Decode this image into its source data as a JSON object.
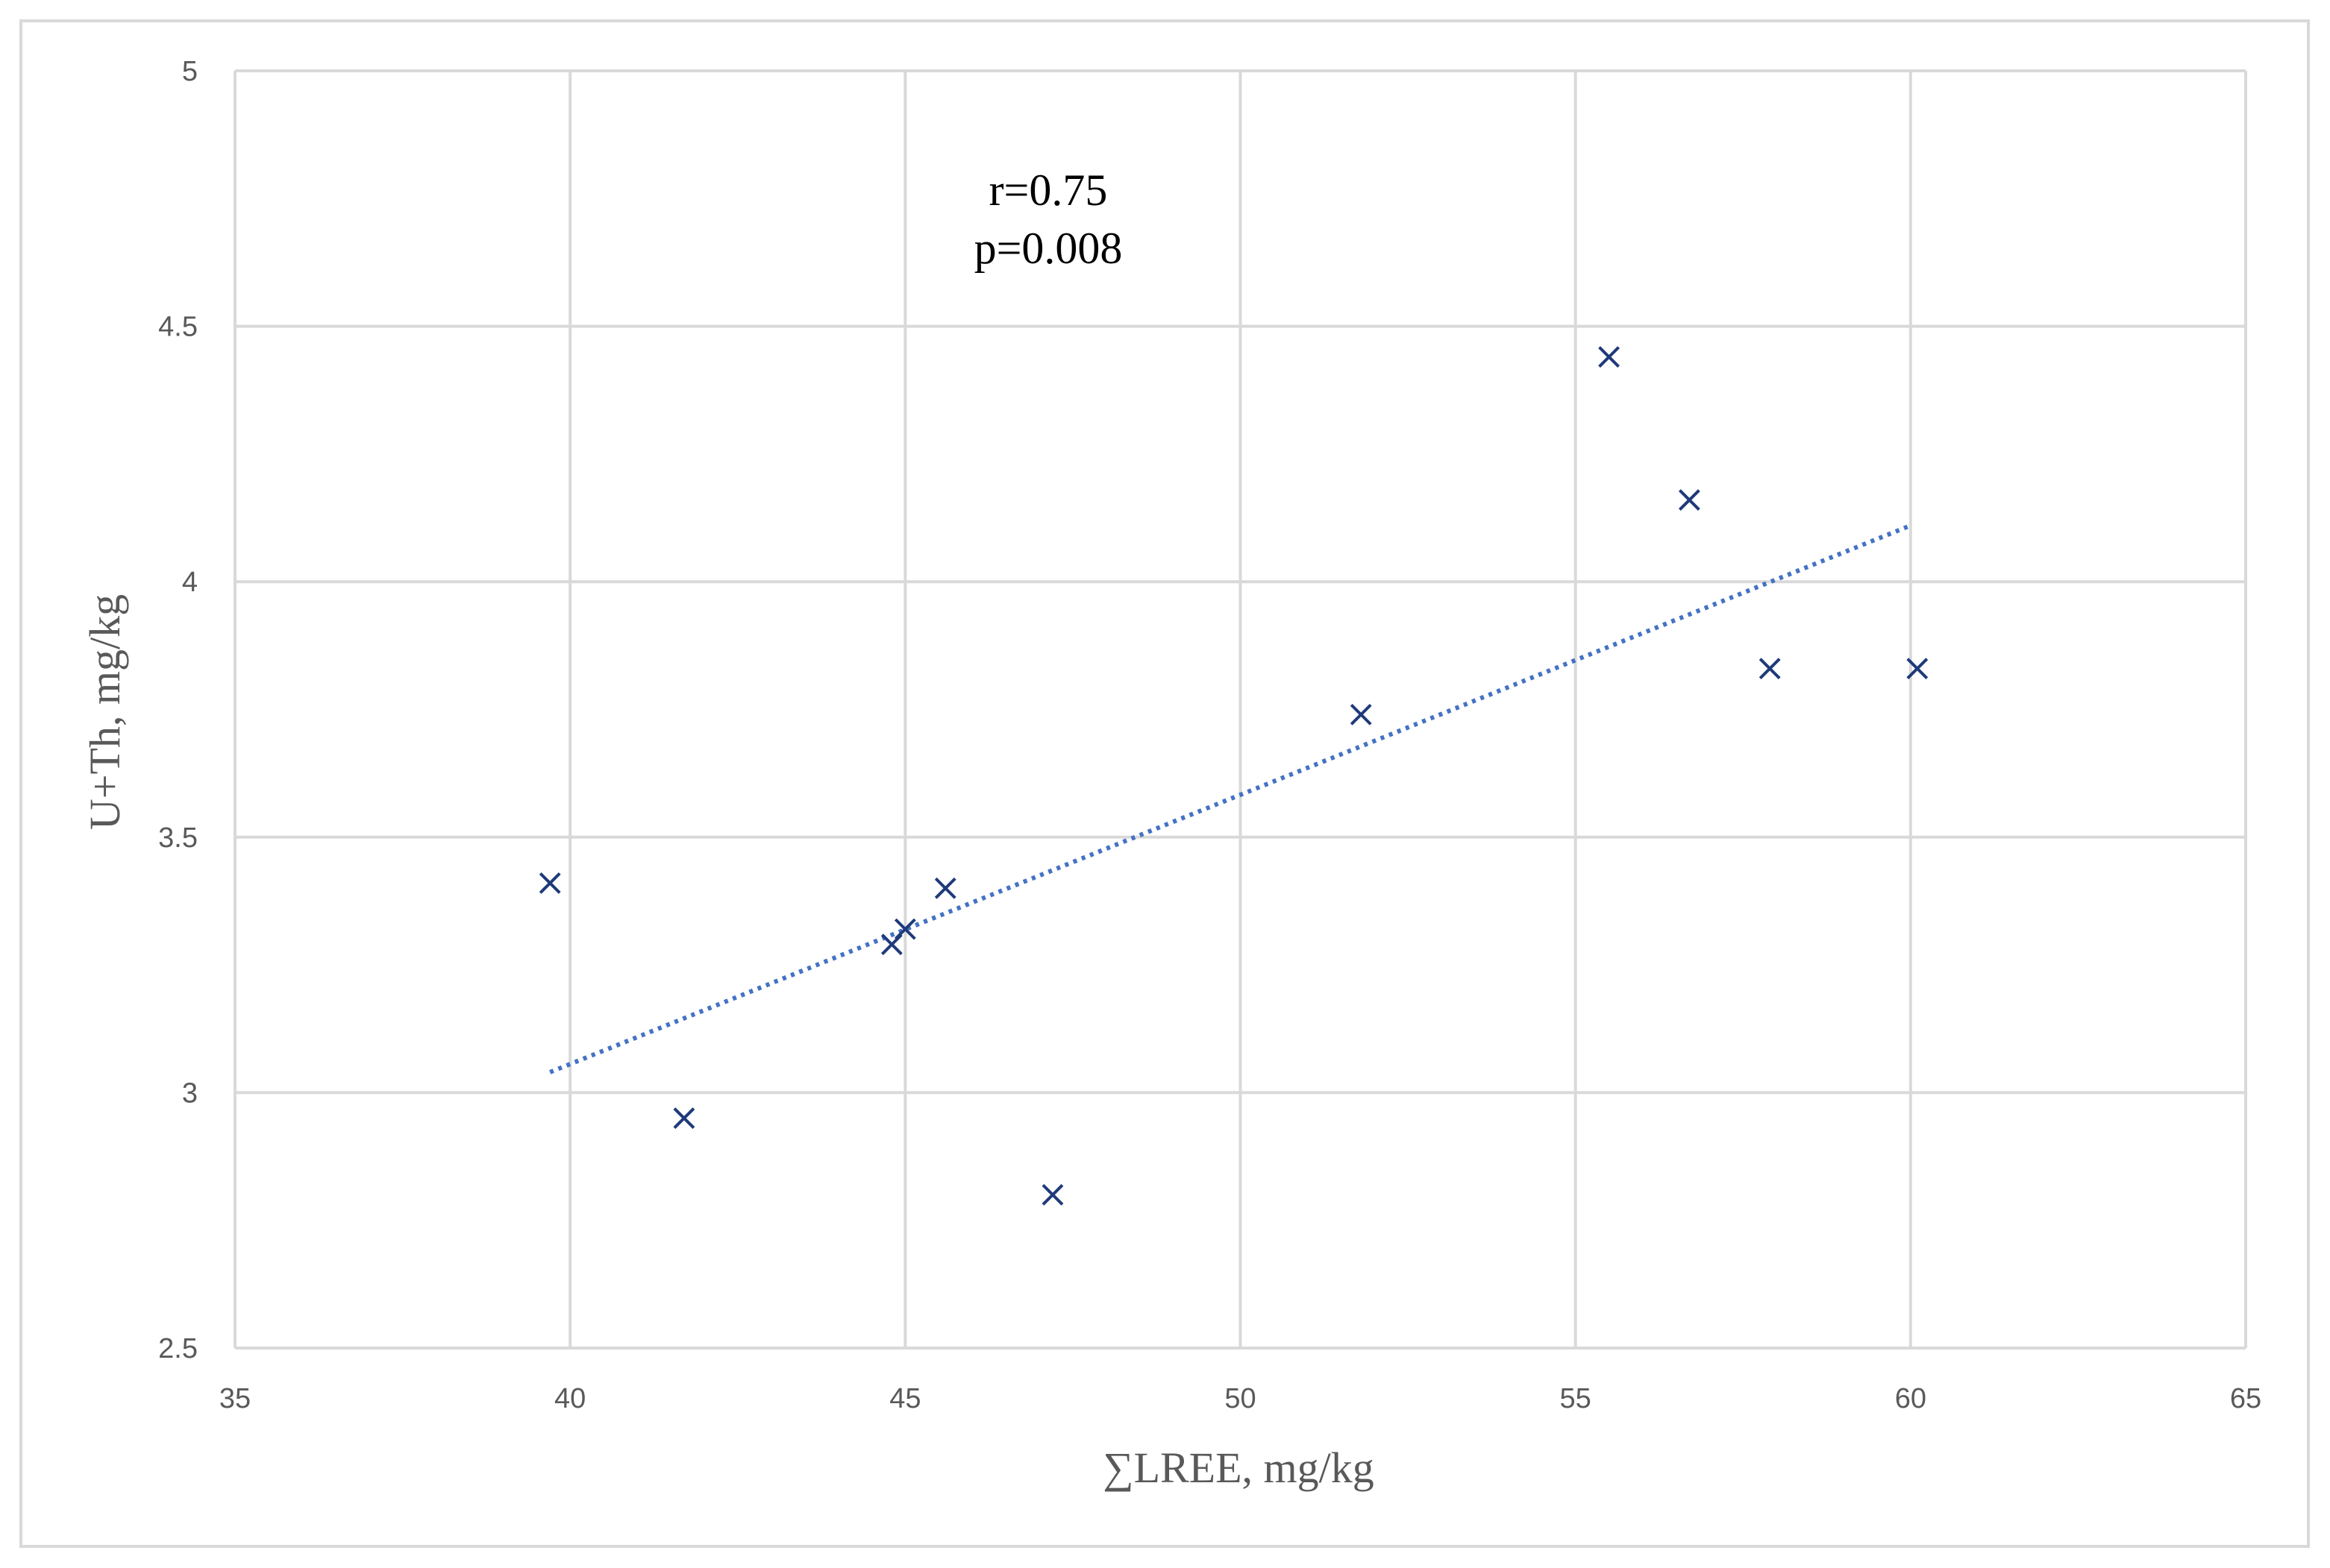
{
  "chart_data": {
    "type": "scatter",
    "xlabel": "∑LREE, mg/kg",
    "ylabel": "U+Th, mg/kg",
    "xlim": [
      35,
      65
    ],
    "ylim": [
      2.5,
      5
    ],
    "x_ticks": [
      35,
      40,
      45,
      50,
      55,
      60,
      65
    ],
    "y_ticks": [
      2.5,
      3,
      3.5,
      4,
      4.5,
      5
    ],
    "x_tick_labels": [
      "35",
      "40",
      "45",
      "50",
      "55",
      "60",
      "65"
    ],
    "y_tick_labels": [
      "2.5",
      "3",
      "3.5",
      "4",
      "4.5",
      "5"
    ],
    "grid": true,
    "legend": "none",
    "marker": "x",
    "colors": {
      "marker": "#1f3a7a",
      "trendline": "#4472c4",
      "grid": "#d9d9d9",
      "frame": "#d9d9d9"
    },
    "series": [
      {
        "x": [
          39.7,
          41.7,
          44.8,
          45.0,
          45.6,
          47.2,
          51.8,
          55.5,
          56.7,
          57.9,
          60.1
        ],
        "y": [
          3.41,
          2.95,
          3.29,
          3.32,
          3.4,
          2.8,
          3.74,
          4.44,
          4.16,
          3.83,
          3.83
        ]
      }
    ],
    "trendline": {
      "style": "dotted",
      "x": [
        39.7,
        60.0
      ],
      "y": [
        3.04,
        4.11
      ]
    },
    "annotations": [
      "r=0.75",
      "p=0.008"
    ]
  }
}
